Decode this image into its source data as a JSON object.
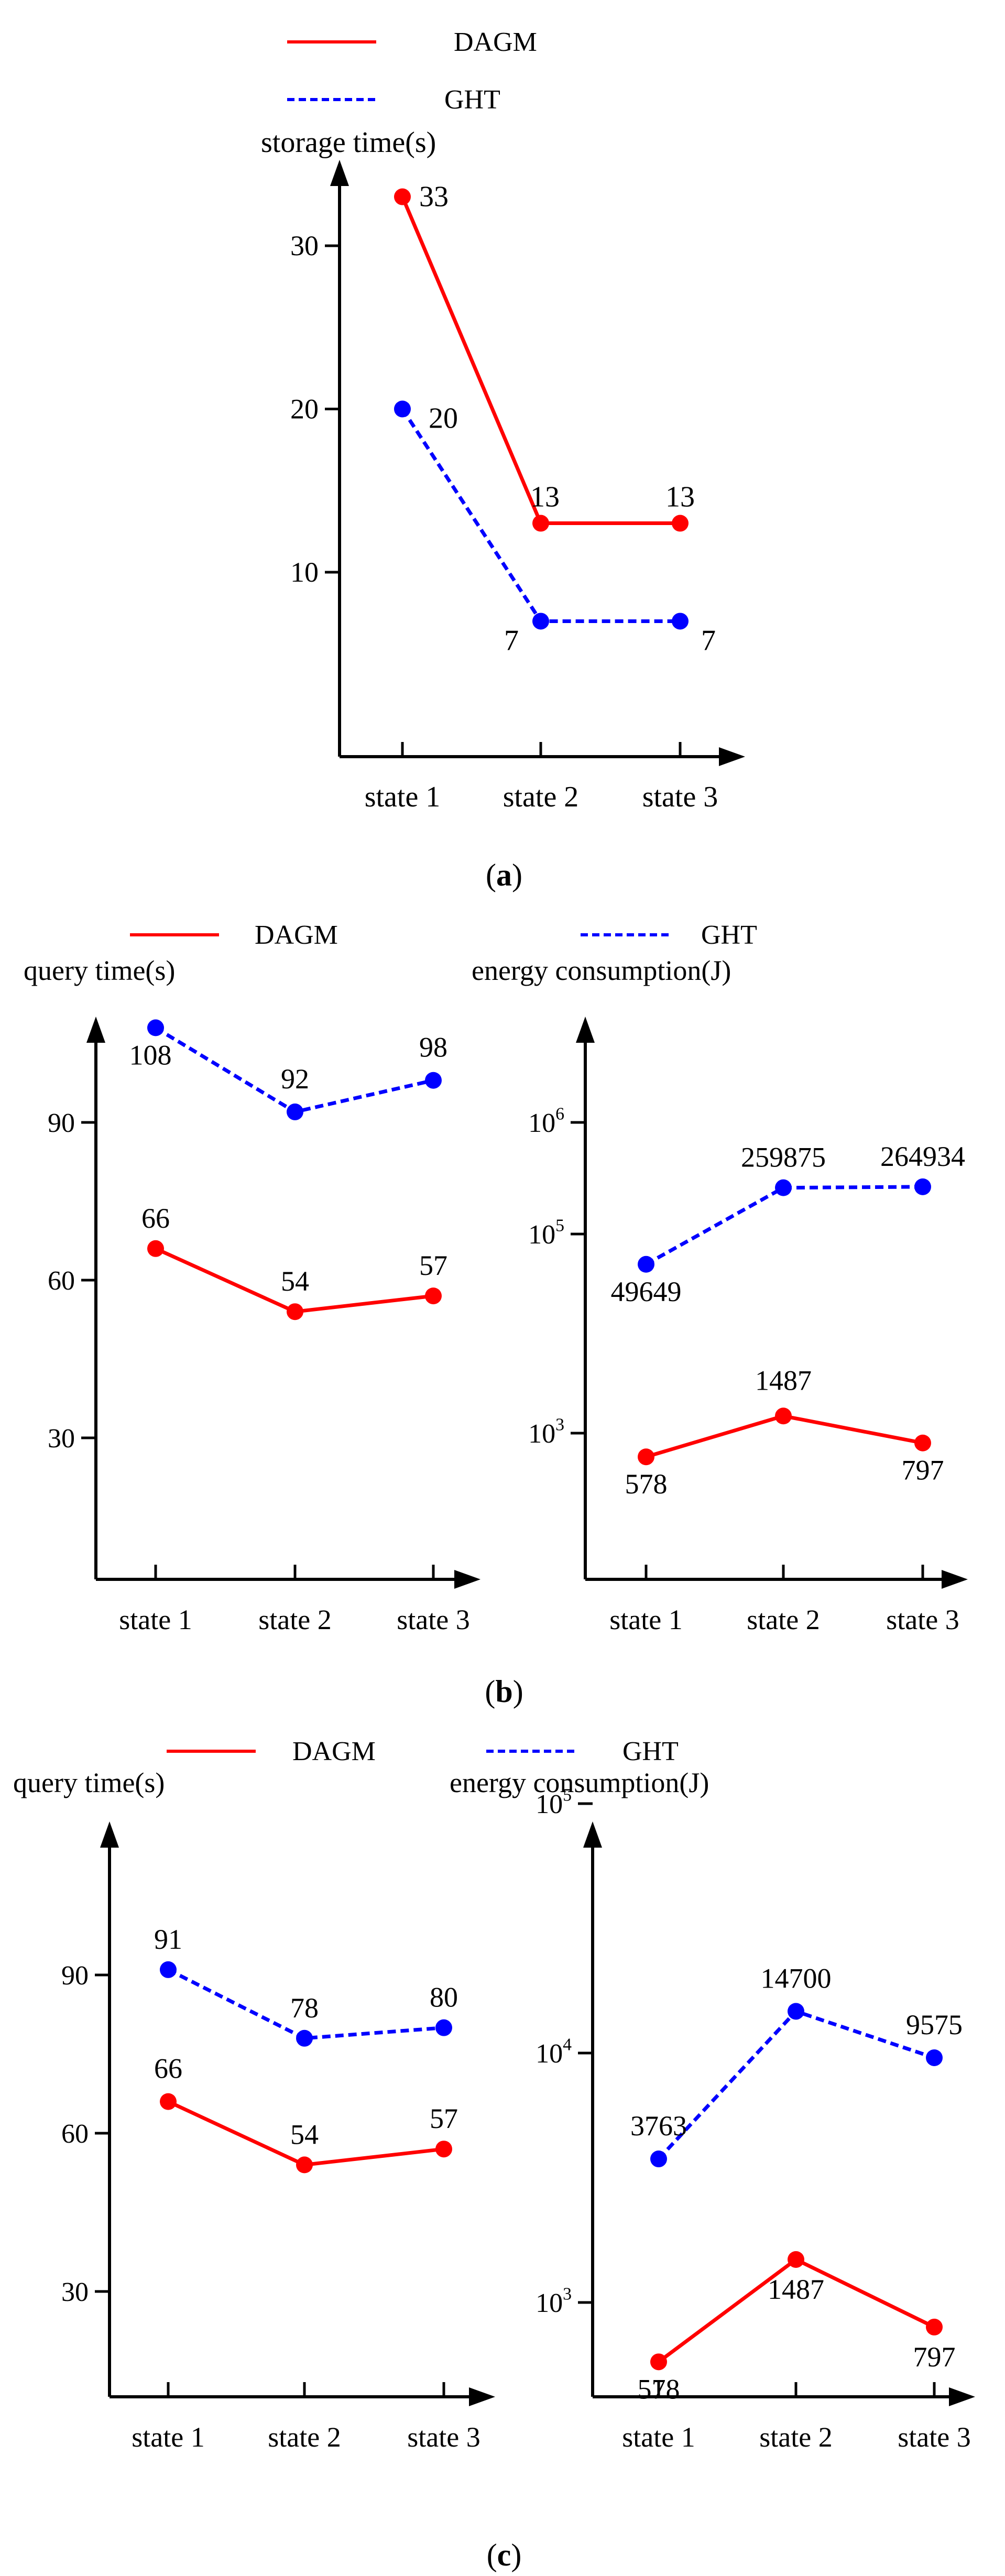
{
  "colors": {
    "dagm": "#ff0000",
    "ght": "#0000ff",
    "axis": "#000000"
  },
  "chart_data": [
    {
      "id": "a",
      "type": "line",
      "caption_label": "a",
      "legend": {
        "dagm": "DAGM",
        "ght": "GHT"
      },
      "ylabel": "storage time(s)",
      "categories": [
        "state 1",
        "state 2",
        "state 3"
      ],
      "yticks": [
        10,
        20,
        30
      ],
      "ylim": [
        0,
        37
      ],
      "log_scale": false,
      "series": [
        {
          "name": "DAGM",
          "values": [
            33,
            13,
            13
          ],
          "labels": [
            "33",
            "13",
            "13"
          ]
        },
        {
          "name": "GHT",
          "values": [
            20,
            7,
            7
          ],
          "labels": [
            "20",
            "7",
            "7"
          ]
        }
      ]
    },
    {
      "id": "b_left",
      "type": "line",
      "legend": {
        "dagm": "DAGM"
      },
      "ylabel": "query time(s)",
      "categories": [
        "state 1",
        "state 2",
        "state 3"
      ],
      "yticks": [
        30,
        60,
        90
      ],
      "ylim": [
        0,
        106
      ],
      "log_scale": false,
      "series": [
        {
          "name": "DAGM",
          "values": [
            66,
            54,
            57
          ],
          "labels": [
            "66",
            "54",
            "57"
          ]
        },
        {
          "name": "GHT",
          "values": [
            108,
            92,
            98
          ],
          "labels": [
            "108",
            "92",
            "98"
          ]
        }
      ]
    },
    {
      "id": "b_right",
      "type": "line",
      "legend": {
        "ght": "GHT"
      },
      "ylabel": "energy consumption(J)",
      "categories": [
        "state 1",
        "state 2",
        "state 3"
      ],
      "yticks": [
        {
          "base": "10",
          "exp": "3",
          "value": 1000
        },
        {
          "base": "10",
          "exp": "5",
          "value": 100000
        },
        {
          "base": "10",
          "exp": "6",
          "value": 1000000
        }
      ],
      "log_scale": true,
      "series": [
        {
          "name": "DAGM",
          "values": [
            578,
            1487,
            797
          ],
          "labels": [
            "578",
            "1487",
            "797"
          ]
        },
        {
          "name": "GHT",
          "values": [
            49649,
            259875,
            264934
          ],
          "labels": [
            "49649",
            "259875",
            "264934"
          ]
        }
      ]
    },
    {
      "id": "c_left",
      "type": "line",
      "legend": {
        "dagm": "DAGM"
      },
      "ylabel": "query time(s)",
      "categories": [
        "state 1",
        "state 2",
        "state 3"
      ],
      "yticks": [
        30,
        60,
        90
      ],
      "ylim": [
        0,
        106
      ],
      "log_scale": false,
      "series": [
        {
          "name": "DAGM",
          "values": [
            66,
            54,
            57
          ],
          "labels": [
            "66",
            "54",
            "57"
          ]
        },
        {
          "name": "GHT",
          "values": [
            91,
            78,
            80
          ],
          "labels": [
            "91",
            "78",
            "80"
          ]
        }
      ]
    },
    {
      "id": "c_right",
      "type": "line",
      "legend": {
        "ght": "GHT"
      },
      "ylabel": "energy consumption(J)",
      "categories": [
        "state 1",
        "state 2",
        "state 3"
      ],
      "yticks": [
        {
          "base": "10",
          "exp": "3",
          "value": 1000
        },
        {
          "base": "10",
          "exp": "4",
          "value": 10000
        },
        {
          "base": "10",
          "exp": "5",
          "value": 100000
        }
      ],
      "log_scale": true,
      "series": [
        {
          "name": "DAGM",
          "values": [
            578,
            1487,
            797
          ],
          "labels": [
            "578",
            "1487",
            "797"
          ]
        },
        {
          "name": "GHT",
          "values": [
            3763,
            14700,
            9575
          ],
          "labels": [
            "3763",
            "14700",
            "9575"
          ]
        }
      ]
    }
  ],
  "captions": {
    "a": "a",
    "b": "b",
    "c": "c"
  }
}
